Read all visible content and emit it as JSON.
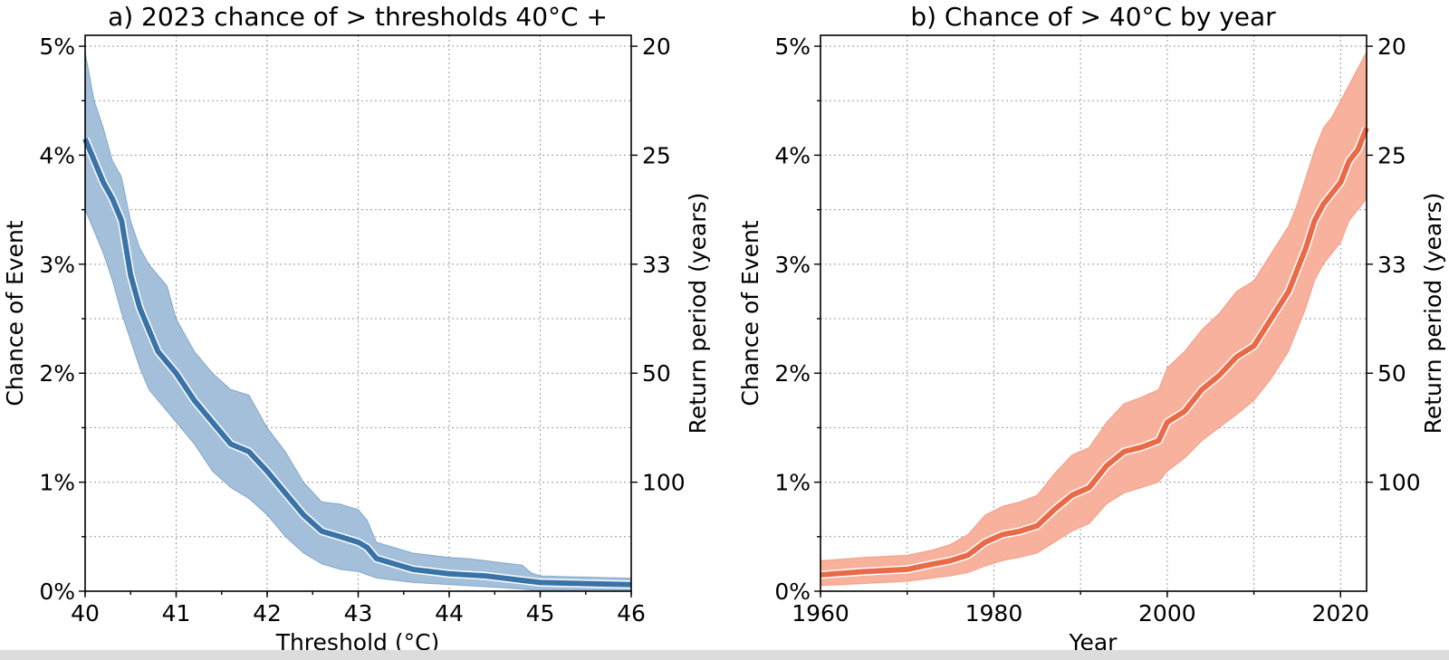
{
  "chart_data": [
    {
      "type": "line",
      "title": "a) 2023 chance of > thresholds 40°C +",
      "xlabel": "Threshold (°C)",
      "ylabel": "Chance of Event",
      "ylabel_right": "Return period (years)",
      "xlim": [
        40,
        46
      ],
      "ylim": [
        0,
        5.1
      ],
      "x_ticks": [
        "40",
        "41",
        "42",
        "43",
        "44",
        "45",
        "46"
      ],
      "y_ticks": [
        "0%",
        "1%",
        "2%",
        "3%",
        "4%",
        "5%"
      ],
      "right_ticks": [
        {
          "label": "20",
          "y": 5.0
        },
        {
          "label": "25",
          "y": 4.0
        },
        {
          "label": "33",
          "y": 3.0
        },
        {
          "label": "50",
          "y": 2.0
        },
        {
          "label": "100",
          "y": 1.0
        }
      ],
      "grid": true,
      "color": "#3a73a8",
      "band_color": "#a3bfda",
      "series": [
        {
          "x": [
            40.0,
            40.1,
            40.2,
            40.3,
            40.4,
            40.5,
            40.6,
            40.7,
            40.8,
            40.9,
            41.0,
            41.2,
            41.4,
            41.6,
            41.8,
            42.0,
            42.2,
            42.4,
            42.6,
            42.8,
            43.0,
            43.1,
            43.2,
            43.4,
            43.6,
            43.8,
            44.0,
            44.2,
            44.4,
            44.6,
            44.8,
            44.9,
            45.0,
            45.5,
            46.0
          ],
          "y": [
            4.15,
            3.95,
            3.75,
            3.6,
            3.4,
            2.9,
            2.6,
            2.4,
            2.2,
            2.1,
            2.0,
            1.75,
            1.55,
            1.35,
            1.28,
            1.1,
            0.9,
            0.7,
            0.55,
            0.5,
            0.45,
            0.4,
            0.3,
            0.25,
            0.2,
            0.18,
            0.16,
            0.15,
            0.14,
            0.12,
            0.1,
            0.09,
            0.08,
            0.07,
            0.06
          ],
          "lower": [
            3.5,
            3.3,
            3.1,
            2.85,
            2.55,
            2.3,
            2.05,
            1.85,
            1.75,
            1.65,
            1.55,
            1.35,
            1.1,
            0.95,
            0.85,
            0.7,
            0.5,
            0.35,
            0.25,
            0.2,
            0.18,
            0.15,
            0.12,
            0.1,
            0.08,
            0.07,
            0.06,
            0.05,
            0.04,
            0.03,
            0.02,
            0.01,
            0.01,
            0.01,
            0.01
          ],
          "upper": [
            4.95,
            4.5,
            4.25,
            3.95,
            3.8,
            3.4,
            3.15,
            3.0,
            2.9,
            2.8,
            2.5,
            2.2,
            2.0,
            1.85,
            1.8,
            1.5,
            1.28,
            1.0,
            0.82,
            0.8,
            0.75,
            0.65,
            0.45,
            0.4,
            0.35,
            0.33,
            0.31,
            0.3,
            0.28,
            0.26,
            0.24,
            0.17,
            0.14,
            0.13,
            0.12
          ]
        }
      ]
    },
    {
      "type": "line",
      "title": "b) Chance of > 40°C by year",
      "xlabel": "Year",
      "ylabel": "Chance of Event",
      "ylabel_right": "Return period (years)",
      "xlim": [
        1960,
        2023
      ],
      "ylim": [
        0,
        5.1
      ],
      "x_ticks": [
        "1960",
        "1980",
        "2000",
        "2020"
      ],
      "y_ticks": [
        "0%",
        "1%",
        "2%",
        "3%",
        "4%",
        "5%"
      ],
      "right_ticks": [
        {
          "label": "20",
          "y": 5.0
        },
        {
          "label": "25",
          "y": 4.0
        },
        {
          "label": "33",
          "y": 3.0
        },
        {
          "label": "50",
          "y": 2.0
        },
        {
          "label": "100",
          "y": 1.0
        }
      ],
      "grid": true,
      "color": "#ea6a47",
      "band_color": "#f7b19c",
      "series": [
        {
          "x": [
            1960,
            1965,
            1970,
            1973,
            1975,
            1977,
            1979,
            1981,
            1983,
            1985,
            1987,
            1989,
            1991,
            1993,
            1995,
            1997,
            1999,
            2000,
            2002,
            2004,
            2006,
            2008,
            2010,
            2012,
            2014,
            2015,
            2016,
            2017,
            2018,
            2019,
            2020,
            2021,
            2022,
            2023
          ],
          "y": [
            0.15,
            0.18,
            0.2,
            0.25,
            0.28,
            0.33,
            0.45,
            0.52,
            0.55,
            0.6,
            0.75,
            0.88,
            0.95,
            1.15,
            1.28,
            1.32,
            1.38,
            1.55,
            1.65,
            1.85,
            1.98,
            2.15,
            2.25,
            2.5,
            2.75,
            2.95,
            3.15,
            3.4,
            3.55,
            3.65,
            3.75,
            3.95,
            4.05,
            4.25
          ],
          "lower": [
            0.05,
            0.07,
            0.09,
            0.12,
            0.14,
            0.17,
            0.23,
            0.28,
            0.31,
            0.35,
            0.45,
            0.55,
            0.62,
            0.8,
            0.9,
            0.95,
            1.0,
            1.1,
            1.22,
            1.38,
            1.5,
            1.62,
            1.75,
            1.95,
            2.2,
            2.4,
            2.6,
            2.85,
            3.0,
            3.1,
            3.2,
            3.4,
            3.5,
            3.6
          ],
          "upper": [
            0.28,
            0.31,
            0.33,
            0.38,
            0.43,
            0.52,
            0.7,
            0.78,
            0.82,
            0.88,
            1.08,
            1.25,
            1.32,
            1.55,
            1.72,
            1.78,
            1.85,
            2.05,
            2.2,
            2.4,
            2.55,
            2.75,
            2.85,
            3.1,
            3.35,
            3.55,
            3.8,
            4.05,
            4.25,
            4.35,
            4.5,
            4.65,
            4.8,
            4.95
          ]
        }
      ]
    }
  ]
}
